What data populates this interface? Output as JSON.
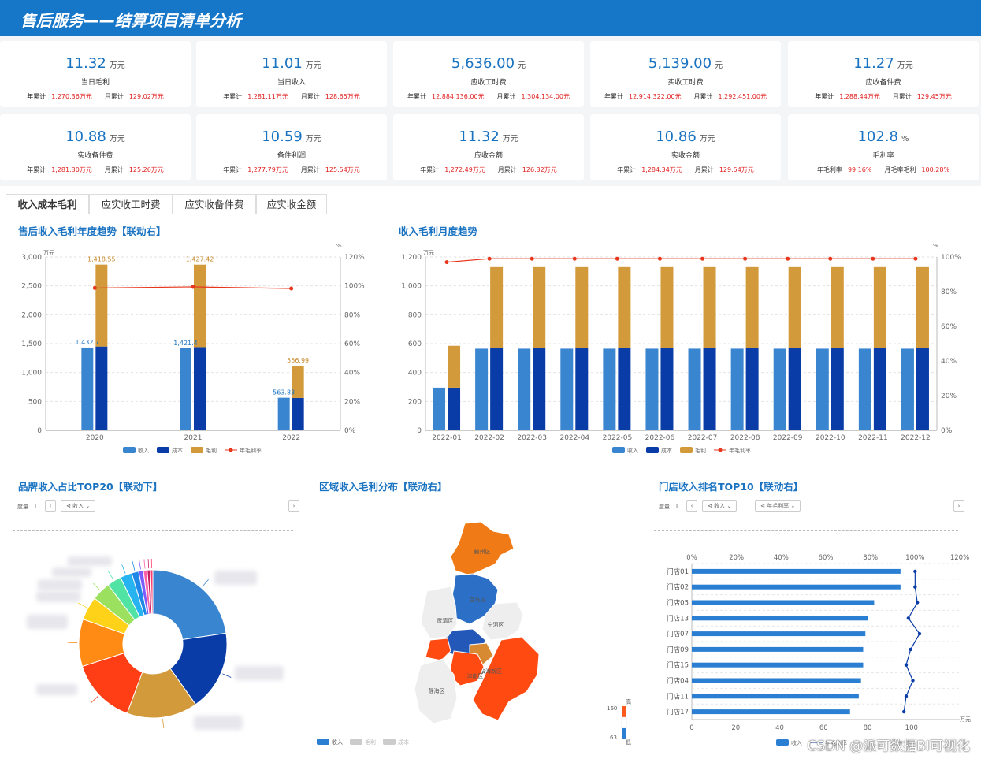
{
  "header": {
    "title": "售后服务——结算项目清单分析"
  },
  "kpis": [
    {
      "value": "11.32",
      "unit": "万元",
      "label": "当日毛利",
      "k1": "年累计",
      "v1": "1,270.36万元",
      "k2": "月累计",
      "v2": "129.02万元"
    },
    {
      "value": "11.01",
      "unit": "万元",
      "label": "当日收入",
      "k1": "年累计",
      "v1": "1,281.11万元",
      "k2": "月累计",
      "v2": "128.65万元"
    },
    {
      "value": "5,636.00",
      "unit": "元",
      "label": "应收工时费",
      "k1": "年累计",
      "v1": "12,884,136.00元",
      "k2": "月累计",
      "v2": "1,304,134.00元"
    },
    {
      "value": "5,139.00",
      "unit": "元",
      "label": "实收工时费",
      "k1": "年累计",
      "v1": "12,914,322.00元",
      "k2": "月累计",
      "v2": "1,292,451.00元"
    },
    {
      "value": "11.27",
      "unit": "万元",
      "label": "应收备件费",
      "k1": "年累计",
      "v1": "1,288.44万元",
      "k2": "月累计",
      "v2": "129.45万元"
    },
    {
      "value": "10.88",
      "unit": "万元",
      "label": "实收备件费",
      "k1": "年累计",
      "v1": "1,281.30万元",
      "k2": "月累计",
      "v2": "125.26万元"
    },
    {
      "value": "10.59",
      "unit": "万元",
      "label": "备件利润",
      "k1": "年累计",
      "v1": "1,277.79万元",
      "k2": "月累计",
      "v2": "125.54万元"
    },
    {
      "value": "11.32",
      "unit": "万元",
      "label": "应收金额",
      "k1": "年累计",
      "v1": "1,272.49万元",
      "k2": "月累计",
      "v2": "126.32万元"
    },
    {
      "value": "10.86",
      "unit": "万元",
      "label": "实收金额",
      "k1": "年累计",
      "v1": "1,284.34万元",
      "k2": "月累计",
      "v2": "129.54万元"
    },
    {
      "value": "102.8",
      "unit": "%",
      "label": "毛利率",
      "k1": "年毛利率",
      "v1": "99.16%",
      "k2": "月毛率毛利",
      "v2": "100.28%"
    }
  ],
  "tabs": [
    "收入成本毛利",
    "应实收工时费",
    "应实收备件费",
    "应实收金额"
  ],
  "sections": {
    "yearly": "售后收入毛利年度趋势【联动右】",
    "monthly": "收入毛利月度趋势",
    "brand": "品牌收入占比TOP20【联动下】",
    "region": "区域收入毛利分布【联动右】",
    "store": "门店收入排名TOP10【联动右】"
  },
  "controls": {
    "measure": "度量",
    "sep": "I",
    "income": "收入",
    "margin_rate": "年毛利率"
  },
  "colors": {
    "income": "#3a85d0",
    "cost": "#0a3ca8",
    "profit": "#d29a3a",
    "rate": "#e8361c",
    "header": "#1677c9"
  },
  "chart_data": [
    {
      "type": "bar",
      "title": "售后收入毛利年度趋势【联动右】",
      "categories": [
        "2020",
        "2021",
        "2022"
      ],
      "series": [
        {
          "name": "收入",
          "values": [
            1432.7,
            1421.4,
            563.83
          ],
          "labels": [
            "1,432.7",
            "1,421.4",
            "563.83"
          ]
        },
        {
          "name": "成本",
          "values": [
            1450,
            1440,
            560
          ]
        },
        {
          "name": "毛利",
          "values": [
            1418.55,
            1427.42,
            556.99
          ],
          "labels": [
            "1,418.55",
            "1,427.42",
            "556.99"
          ]
        },
        {
          "name": "年毛利率",
          "values": [
            98.5,
            99.3,
            98.2
          ]
        }
      ],
      "ylabel": "万元",
      "y2label": "%",
      "ylim": [
        0,
        3000
      ],
      "y2lim": [
        0,
        120
      ],
      "yticks": [
        "3,000",
        "2,500",
        "2,000",
        "1,500",
        "1,000",
        "500",
        "0"
      ],
      "y2ticks": [
        "120%",
        "100%",
        "80%",
        "60%",
        "40%",
        "20%",
        "0%"
      ]
    },
    {
      "type": "bar",
      "title": "收入毛利月度趋势",
      "categories": [
        "2022-01",
        "2022-02",
        "2022-03",
        "2022-04",
        "2022-05",
        "2022-06",
        "2022-07",
        "2022-08",
        "2022-09",
        "2022-10",
        "2022-11",
        "2022-12"
      ],
      "series": [
        {
          "name": "收入",
          "values": [
            295,
            565,
            565,
            565,
            565,
            565,
            565,
            565,
            565,
            565,
            565,
            565
          ]
        },
        {
          "name": "成本",
          "values": [
            295,
            570,
            570,
            570,
            570,
            570,
            570,
            570,
            570,
            570,
            570,
            570
          ]
        },
        {
          "name": "毛利",
          "values": [
            290,
            560,
            560,
            560,
            560,
            560,
            560,
            560,
            560,
            560,
            560,
            560
          ]
        },
        {
          "name": "年毛利率",
          "values": [
            97,
            99,
            99,
            99,
            99,
            99,
            99,
            99,
            99,
            99,
            99,
            99
          ]
        }
      ],
      "ylabel": "万元",
      "y2label": "%",
      "ylim": [
        0,
        1200
      ],
      "y2lim": [
        0,
        100
      ],
      "yticks": [
        "1,200",
        "1,000",
        "800",
        "600",
        "400",
        "200",
        "0"
      ],
      "y2ticks": [
        "100%",
        "80%",
        "60%",
        "40%",
        "20%",
        "0%"
      ]
    },
    {
      "type": "pie",
      "title": "品牌收入占比TOP20【联动下】",
      "values": [
        22,
        17,
        15,
        14,
        10,
        5,
        4,
        3,
        2.5,
        1.5,
        1,
        0.8,
        0.7,
        0.5
      ],
      "colors": [
        "#3a85d0",
        "#0a3ca8",
        "#d29a3a",
        "#ff3e16",
        "#ff8a14",
        "#ffd21a",
        "#9be15f",
        "#51e3a4",
        "#27b2f0",
        "#1f88e6",
        "#7a5cff",
        "#ff5fa8",
        "#c81e64",
        "#ff3d6e"
      ]
    },
    {
      "type": "map",
      "title": "区域收入毛利分布【联动右】",
      "regions": [
        "蓟州区",
        "宝坻区",
        "武清区",
        "宁河区",
        "滨海新区",
        "津南区",
        "静海区"
      ],
      "legend": [
        "收入",
        "毛利",
        "成本"
      ],
      "range": {
        "max": 160,
        "min": 63,
        "high_label": "高",
        "low_label": "低"
      }
    },
    {
      "type": "bar",
      "title": "门店收入排名TOP10【联动右】",
      "categories": [
        "门店01",
        "门店02",
        "门店05",
        "门店13",
        "门店07",
        "门店09",
        "门店15",
        "门店04",
        "门店11",
        "门店17"
      ],
      "series": [
        {
          "name": "收入",
          "values": [
            95,
            95,
            83,
            80,
            79,
            78,
            78,
            77,
            76,
            72
          ]
        },
        {
          "name": "年毛利率",
          "values": [
            100,
            100,
            101,
            97,
            102,
            98,
            96,
            99,
            96,
            95
          ]
        }
      ],
      "xlabel": "万元",
      "xlim": [
        0,
        100
      ],
      "x2lim": [
        0,
        120
      ],
      "xticks": [
        "0",
        "20",
        "40",
        "60",
        "80",
        "100"
      ],
      "x2ticks": [
        "0%",
        "20%",
        "40%",
        "60%",
        "80%",
        "100%",
        "120%"
      ]
    }
  ],
  "watermark": "CSDN @派可数据BI可视化"
}
